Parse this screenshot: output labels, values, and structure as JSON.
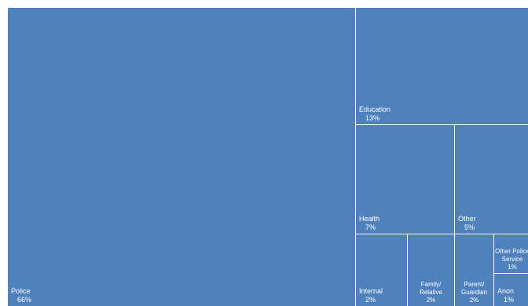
{
  "chart_data": {
    "type": "treemap",
    "title": "",
    "color": "#4f81bd",
    "border_color": "#ffffff",
    "items": [
      {
        "name": "Police",
        "label": "Police",
        "pct_label": "66%"
      },
      {
        "name": "Education",
        "label": "Education",
        "pct_label": "13%"
      },
      {
        "name": "Health",
        "label": "Health",
        "pct_label": "7%"
      },
      {
        "name": "Other",
        "label": "Other",
        "pct_label": "5%"
      },
      {
        "name": "Internal",
        "label": "Internal",
        "pct_label": "2%"
      },
      {
        "name": "Family/Relative",
        "label": [
          "Family/",
          "Relative"
        ],
        "pct_label": "2%"
      },
      {
        "name": "Parent/Guardian",
        "label": [
          "Parent/",
          "Guardian"
        ],
        "pct_label": "2%"
      },
      {
        "name": "Other Police Service",
        "label": [
          "Other Police",
          "Service"
        ],
        "pct_label": "1%"
      },
      {
        "name": "Anon",
        "label": "Anon",
        "pct_label": "1%"
      }
    ]
  }
}
